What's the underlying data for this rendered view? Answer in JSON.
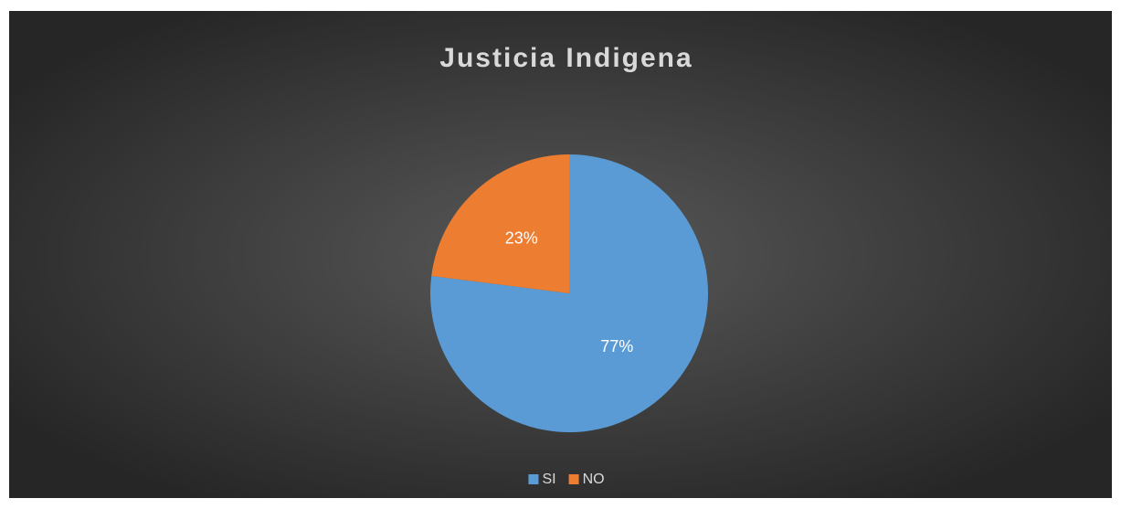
{
  "chart_data": {
    "type": "pie",
    "title": "Justicia Indigena",
    "categories": [
      "SI",
      "NO"
    ],
    "values": [
      77,
      23
    ],
    "value_labels": [
      "77%",
      "23%"
    ],
    "colors": [
      "#5b9bd5",
      "#ed7d31"
    ],
    "legend": "bottom"
  }
}
